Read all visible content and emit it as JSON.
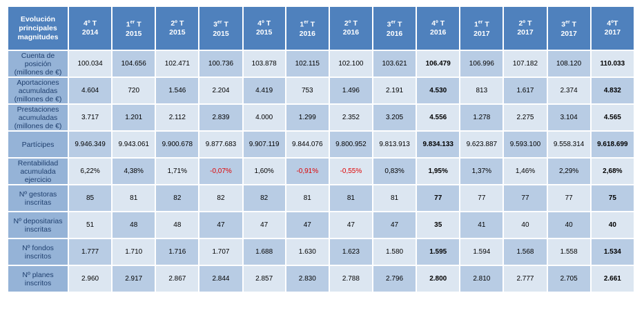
{
  "table": {
    "corner": "Evolución principales magnitudes",
    "columns": [
      {
        "q": "4º",
        "t": "T",
        "year": "2014"
      },
      {
        "q": "1",
        "sup": "er",
        "t": "T",
        "year": "2015"
      },
      {
        "q": "2º",
        "t": "T",
        "year": "2015"
      },
      {
        "q": "3",
        "sup": "er",
        "t": "T",
        "year": "2015"
      },
      {
        "q": "4º",
        "t": "T",
        "year": "2015"
      },
      {
        "q": "1",
        "sup": "er",
        "t": "T",
        "year": "2016"
      },
      {
        "q": "2º",
        "t": "T",
        "year": "2016"
      },
      {
        "q": "3",
        "sup": "er",
        "t": "T",
        "year": "2016"
      },
      {
        "q": "4º",
        "t": "T",
        "year": "2016"
      },
      {
        "q": "1",
        "sup": "er",
        "t": "T",
        "year": "2017"
      },
      {
        "q": "2º",
        "t": "T",
        "year": "2017"
      },
      {
        "q": "3",
        "sup": "er",
        "t": "T",
        "year": "2017"
      },
      {
        "q": "4ºT",
        "year": "2017"
      }
    ],
    "rows": [
      {
        "label": "Cuenta de posición (millones de €)",
        "cells": [
          "100.034",
          "104.656",
          "102.471",
          "100.736",
          "103.878",
          "102.115",
          "102.100",
          "103.621",
          "106.479",
          "106.996",
          "107.182",
          "108.120",
          "110.033"
        ]
      },
      {
        "label": "Aportaciones acumuladas (millones de €)",
        "cells": [
          "4.604",
          "720",
          "1.546",
          "2.204",
          "4.419",
          "753",
          "1.496",
          "2.191",
          "4.530",
          "813",
          "1.617",
          "2.374",
          "4.832"
        ]
      },
      {
        "label": "Prestaciones acumuladas (millones de €)",
        "cells": [
          "3.717",
          "1.201",
          "2.112",
          "2.839",
          "4.000",
          "1.299",
          "2.352",
          "3.205",
          "4.556",
          "1.278",
          "2.275",
          "3.104",
          "4.565"
        ]
      },
      {
        "label": "Partícipes",
        "cells": [
          "9.946.349",
          "9.943.061",
          "9.900.678",
          "9.877.683",
          "9.907.119",
          "9.844.076",
          "9.800.952",
          "9.813.913",
          "9.834.133",
          "9.623.887",
          "9.593.100",
          "9.558.314",
          "9.618.699"
        ]
      },
      {
        "label": "Rentabilidad acumulada ejercicio",
        "cells": [
          "6,22%",
          "4,38%",
          "1,71%",
          "-0,07%",
          "1,60%",
          "-0,91%",
          "-0,55%",
          "0,83%",
          "1,95%",
          "1,37%",
          "1,46%",
          "2,29%",
          "2,68%"
        ]
      },
      {
        "label": "Nº gestoras inscritas",
        "cells": [
          "85",
          "81",
          "82",
          "82",
          "82",
          "81",
          "81",
          "81",
          "77",
          "77",
          "77",
          "77",
          "75"
        ]
      },
      {
        "label": "Nº depositarias inscritas",
        "cells": [
          "51",
          "48",
          "48",
          "47",
          "47",
          "47",
          "47",
          "47",
          "35",
          "41",
          "40",
          "40",
          "40"
        ]
      },
      {
        "label": "Nº fondos inscritos",
        "cells": [
          "1.777",
          "1.710",
          "1.716",
          "1.707",
          "1.688",
          "1.630",
          "1.623",
          "1.580",
          "1.595",
          "1.594",
          "1.568",
          "1.558",
          "1.534"
        ]
      },
      {
        "label": "Nº planes inscritos",
        "cells": [
          "2.960",
          "2.917",
          "2.867",
          "2.844",
          "2.857",
          "2.830",
          "2.788",
          "2.796",
          "2.800",
          "2.810",
          "2.777",
          "2.705",
          "2.661"
        ]
      }
    ]
  }
}
